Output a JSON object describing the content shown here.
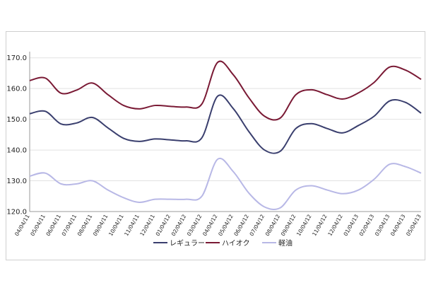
{
  "chart_data": {
    "type": "line",
    "title": "",
    "xlabel": "",
    "ylabel": "",
    "ylim": [
      120,
      172
    ],
    "yticks": [
      "120.0",
      "130.0",
      "140.0",
      "150.0",
      "160.0",
      "170.0"
    ],
    "grid": "horizontal",
    "legend_position": "bottom",
    "x_tick_labels": [
      "04/04/11",
      "05/04/11",
      "06/04/11",
      "07/04/11",
      "08/04/11",
      "09/04/11",
      "10/04/11",
      "11/04/11",
      "12/04/11",
      "01/04/12",
      "02/04/12",
      "03/04/12",
      "04/04/12",
      "05/04/12",
      "06/04/12",
      "07/04/12",
      "08/04/12",
      "09/04/12",
      "10/04/12",
      "11/04/12",
      "12/04/12",
      "01/04/13",
      "02/04/13",
      "03/04/13",
      "04/04/13",
      "05/04/13"
    ],
    "x": [
      "04/04/11",
      "05/04/11",
      "06/04/11",
      "07/04/11",
      "08/04/11",
      "09/04/11",
      "10/04/11",
      "11/04/11",
      "12/04/11",
      "01/04/12",
      "02/04/12",
      "03/04/12",
      "04/04/12",
      "05/04/12",
      "06/04/12",
      "07/04/12",
      "08/04/12",
      "09/04/12",
      "10/04/12",
      "11/04/12",
      "12/04/12",
      "01/04/13",
      "02/04/13",
      "03/04/13",
      "04/04/13",
      "05/04/13"
    ],
    "series": [
      {
        "name": "レギュラー",
        "color": "#3a3f6e",
        "values": [
          151.8,
          152.6,
          148.5,
          148.8,
          150.6,
          147.2,
          143.8,
          142.8,
          143.6,
          143.3,
          143.0,
          144.0,
          157.5,
          153.5,
          146.0,
          140.0,
          139.6,
          147.0,
          148.6,
          147.0,
          145.6,
          148.0,
          151.0,
          156.0,
          155.5,
          152.0
        ]
      },
      {
        "name": "ハイオク",
        "color": "#7a1a35",
        "values": [
          162.6,
          163.4,
          158.5,
          159.5,
          161.8,
          158.0,
          154.5,
          153.4,
          154.5,
          154.2,
          154.0,
          155.0,
          168.5,
          164.5,
          157.0,
          151.0,
          150.4,
          158.0,
          159.6,
          158.0,
          156.6,
          158.6,
          162.0,
          167.0,
          166.0,
          163.0
        ]
      },
      {
        "name": "軽油",
        "color": "#b8b8e6",
        "values": [
          131.5,
          132.5,
          129.0,
          129.0,
          130.0,
          127.0,
          124.5,
          123.0,
          124.0,
          124.0,
          124.0,
          125.0,
          137.0,
          133.0,
          126.0,
          121.5,
          121.2,
          127.0,
          128.4,
          127.0,
          125.8,
          127.0,
          130.5,
          135.4,
          134.6,
          132.5
        ]
      }
    ]
  }
}
